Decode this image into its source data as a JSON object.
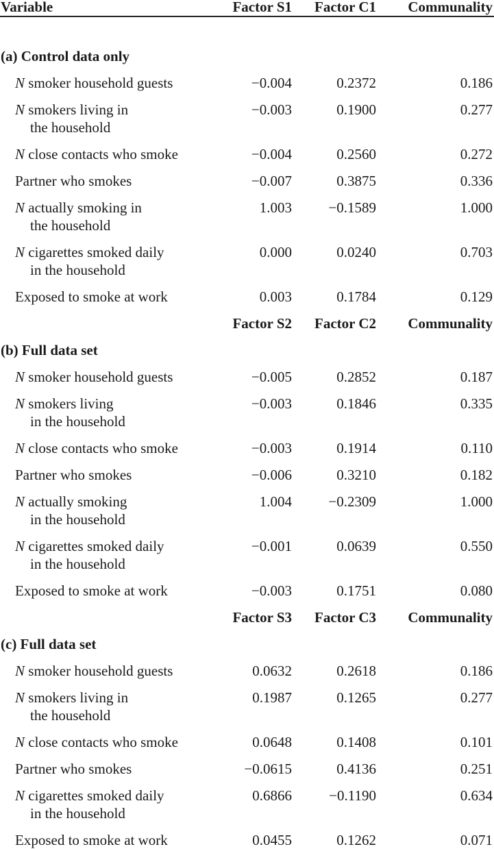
{
  "header": {
    "variable": "Variable",
    "col1": "Factor S1",
    "col2": "Factor C1",
    "col3": "Communality"
  },
  "panels": [
    {
      "title": "(a) Control data only",
      "rows": [
        {
          "italic_prefix": "N",
          "label": [
            "smoker household guests"
          ],
          "s": "−0.004",
          "c": "0.2372",
          "m": "0.186"
        },
        {
          "italic_prefix": "N",
          "label": [
            "smokers living in",
            "the household"
          ],
          "s": "−0.003",
          "c": "0.1900",
          "m": "0.277"
        },
        {
          "italic_prefix": "N",
          "label": [
            "close contacts who smoke"
          ],
          "s": "−0.004",
          "c": "0.2560",
          "m": "0.272"
        },
        {
          "italic_prefix": "",
          "label": [
            "Partner who smokes"
          ],
          "s": "−0.007",
          "c": "0.3875",
          "m": "0.336"
        },
        {
          "italic_prefix": "N",
          "label": [
            "actually smoking in",
            "the household"
          ],
          "s": "1.003",
          "c": "−0.1589",
          "m": "1.000"
        },
        {
          "italic_prefix": "N",
          "label": [
            "cigarettes smoked daily",
            "in the household"
          ],
          "s": "0.000",
          "c": "0.0240",
          "m": "0.703"
        },
        {
          "italic_prefix": "",
          "label": [
            "Exposed to smoke at work"
          ],
          "s": "0.003",
          "c": "0.1784",
          "m": "0.129"
        }
      ]
    },
    {
      "subheader": {
        "col1": "Factor S2",
        "col2": "Factor C2",
        "col3": "Communality"
      },
      "title": "(b) Full data set",
      "rows": [
        {
          "italic_prefix": "N",
          "label": [
            "smoker household guests"
          ],
          "s": "−0.005",
          "c": "0.2852",
          "m": "0.187"
        },
        {
          "italic_prefix": "N",
          "label": [
            "smokers living",
            "in the household"
          ],
          "s": "−0.003",
          "c": "0.1846",
          "m": "0.335"
        },
        {
          "italic_prefix": "N",
          "label": [
            "close contacts who smoke"
          ],
          "s": "−0.003",
          "c": "0.1914",
          "m": "0.110"
        },
        {
          "italic_prefix": "",
          "label": [
            "Partner who smokes"
          ],
          "s": "−0.006",
          "c": "0.3210",
          "m": "0.182"
        },
        {
          "italic_prefix": "N",
          "label": [
            "actually smoking",
            "in the household"
          ],
          "s": "1.004",
          "c": "−0.2309",
          "m": "1.000"
        },
        {
          "italic_prefix": "N",
          "label": [
            "cigarettes smoked daily",
            "in the household"
          ],
          "s": "−0.001",
          "c": "0.0639",
          "m": "0.550"
        },
        {
          "italic_prefix": "",
          "label": [
            "Exposed to smoke at work"
          ],
          "s": "−0.003",
          "c": "0.1751",
          "m": "0.080"
        }
      ]
    },
    {
      "subheader": {
        "col1": "Factor S3",
        "col2": "Factor C3",
        "col3": "Communality"
      },
      "title": "(c) Full data set",
      "rows": [
        {
          "italic_prefix": "N",
          "label": [
            "smoker household guests"
          ],
          "s": "0.0632",
          "c": "0.2618",
          "m": "0.186"
        },
        {
          "italic_prefix": "N",
          "label": [
            "smokers living in",
            "the household"
          ],
          "s": "0.1987",
          "c": "0.1265",
          "m": "0.277"
        },
        {
          "italic_prefix": "N",
          "label": [
            "close contacts who smoke"
          ],
          "s": "0.0648",
          "c": "0.1408",
          "m": "0.101"
        },
        {
          "italic_prefix": "",
          "label": [
            "Partner who smokes"
          ],
          "s": "−0.0615",
          "c": "0.4136",
          "m": "0.251"
        },
        {
          "italic_prefix": "N",
          "label": [
            "cigarettes smoked daily",
            "in the household"
          ],
          "s": "0.6866",
          "c": "−0.1190",
          "m": "0.634"
        },
        {
          "italic_prefix": "",
          "label": [
            "Exposed to smoke at work"
          ],
          "s": "0.0455",
          "c": "0.1262",
          "m": "0.071"
        }
      ]
    }
  ]
}
